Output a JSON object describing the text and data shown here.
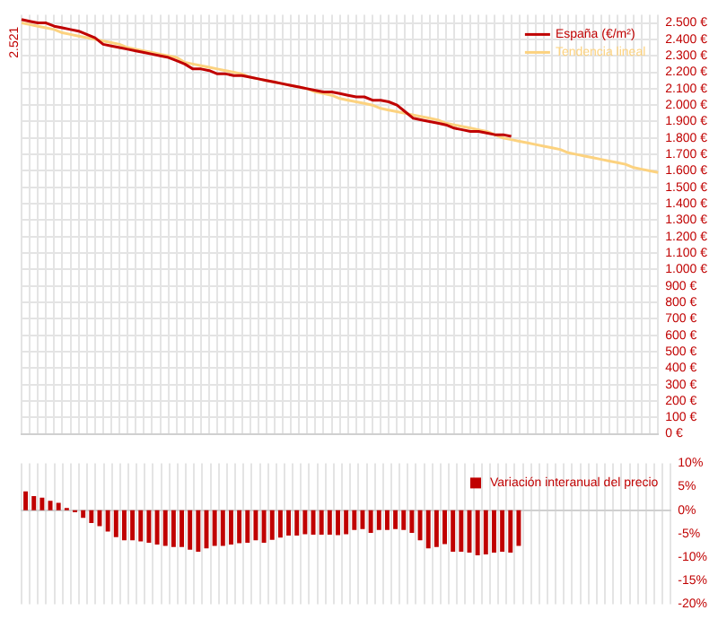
{
  "chart_data": [
    {
      "type": "line",
      "categories": [
        null,
        null,
        null,
        null,
        null,
        null,
        null,
        null,
        null,
        null,
        null,
        null,
        null,
        null,
        null,
        null,
        null,
        null,
        null,
        null,
        null,
        null,
        null,
        null,
        null,
        null,
        null,
        null,
        null,
        null,
        null,
        null,
        null,
        null,
        null,
        null,
        null,
        null,
        null,
        null,
        null,
        null,
        null,
        null,
        null,
        null,
        null,
        null,
        null,
        null,
        null,
        null,
        null,
        null,
        null,
        null,
        null,
        null,
        null,
        null,
        null,
        null,
        null,
        null,
        null,
        null,
        null,
        null,
        null,
        null,
        null,
        null,
        null,
        null,
        null,
        null,
        null,
        null,
        null
      ],
      "series": [
        {
          "name": "España (€/m²)",
          "color": "#c00000",
          "values": [
            2521,
            2510,
            2500,
            2500,
            2480,
            2470,
            2460,
            2450,
            2430,
            2410,
            2370,
            2360,
            2350,
            2340,
            2330,
            2320,
            2310,
            2300,
            2290,
            2270,
            2250,
            2220,
            2220,
            2210,
            2190,
            2190,
            2180,
            2180,
            2170,
            2160,
            2150,
            2140,
            2130,
            2120,
            2110,
            2100,
            2090,
            2080,
            2080,
            2070,
            2060,
            2050,
            2050,
            2030,
            2030,
            2020,
            2000,
            1960,
            1920,
            1910,
            1900,
            1890,
            1880,
            1860,
            1850,
            1840,
            1840,
            1830,
            1820,
            1820,
            1810,
            null,
            null,
            null,
            null,
            null,
            null,
            null,
            null,
            null,
            null,
            null,
            null,
            null,
            null,
            null,
            null,
            null,
            null
          ],
          "value_labels": [
            "2.521",
            null,
            null,
            null,
            null,
            null,
            null,
            null,
            null,
            null,
            null,
            null,
            null,
            null,
            null,
            null,
            null,
            null,
            null,
            null,
            null,
            null,
            null,
            null,
            null,
            null,
            null,
            null,
            null,
            null,
            null,
            null,
            null,
            null,
            null,
            null,
            null,
            null,
            null,
            null,
            null,
            null,
            null,
            null,
            null,
            null,
            null,
            null,
            null,
            null,
            null,
            null,
            null,
            null,
            null,
            null,
            null,
            null,
            null,
            null,
            null,
            null,
            null,
            null,
            null,
            null,
            null,
            null,
            null,
            null,
            null,
            null,
            null,
            null,
            null,
            null,
            null,
            null,
            null
          ]
        },
        {
          "name": "Tendencia lineal",
          "color": "#fcd27f",
          "values": [
            2500,
            2490,
            2480,
            2470,
            2460,
            2440,
            2430,
            2420,
            2410,
            2400,
            2390,
            2380,
            2370,
            2350,
            2340,
            2330,
            2320,
            2310,
            2300,
            2290,
            2260,
            2250,
            2240,
            2230,
            2220,
            2210,
            2200,
            2190,
            2170,
            2160,
            2150,
            2140,
            2130,
            2120,
            2110,
            2100,
            2080,
            2070,
            2060,
            2040,
            2030,
            2020,
            2010,
            2000,
            1980,
            1970,
            1960,
            1950,
            1940,
            1930,
            1920,
            1910,
            1890,
            1880,
            1870,
            1860,
            1850,
            1840,
            1820,
            1800,
            1790,
            1780,
            1770,
            1760,
            1750,
            1740,
            1730,
            1710,
            1700,
            1690,
            1680,
            1670,
            1660,
            1650,
            1640,
            1620,
            1610,
            1600,
            1590
          ]
        }
      ],
      "ylim": [
        0,
        2550
      ],
      "yticks": [
        {
          "value": 0,
          "label": "0 €"
        },
        {
          "value": 100,
          "label": "100 €"
        },
        {
          "value": 200,
          "label": "200 €"
        },
        {
          "value": 300,
          "label": "300 €"
        },
        {
          "value": 400,
          "label": "400 €"
        },
        {
          "value": 500,
          "label": "500 €"
        },
        {
          "value": 600,
          "label": "600 €"
        },
        {
          "value": 700,
          "label": "700 €"
        },
        {
          "value": 800,
          "label": "800 €"
        },
        {
          "value": 900,
          "label": "900 €"
        },
        {
          "value": 1000,
          "label": "1.000 €"
        },
        {
          "value": 1100,
          "label": "1.100 €"
        },
        {
          "value": 1200,
          "label": "1.200 €"
        },
        {
          "value": 1300,
          "label": "1.300 €"
        },
        {
          "value": 1400,
          "label": "1.400 €"
        },
        {
          "value": 1500,
          "label": "1.500 €"
        },
        {
          "value": 1600,
          "label": "1.600 €"
        },
        {
          "value": 1700,
          "label": "1.700 €"
        },
        {
          "value": 1800,
          "label": "1.800 €"
        },
        {
          "value": 1900,
          "label": "1.900 €"
        },
        {
          "value": 2000,
          "label": "2.000 €"
        },
        {
          "value": 2100,
          "label": "2.100 €"
        },
        {
          "value": 2200,
          "label": "2.200 €"
        },
        {
          "value": 2300,
          "label": "2.300 €"
        },
        {
          "value": 2400,
          "label": "2.400 €"
        },
        {
          "value": 2500,
          "label": "2.500 €"
        }
      ],
      "grid": true,
      "legend": "top right",
      "marker": "none"
    },
    {
      "type": "bar",
      "categories": [
        null,
        null,
        null,
        null,
        null,
        null,
        null,
        null,
        null,
        null,
        null,
        null,
        null,
        null,
        null,
        null,
        null,
        null,
        null,
        null,
        null,
        null,
        null,
        null,
        null,
        null,
        null,
        null,
        null,
        null,
        null,
        null,
        null,
        null,
        null,
        null,
        null,
        null,
        null,
        null,
        null,
        null,
        null,
        null,
        null,
        null,
        null,
        null,
        null,
        null,
        null,
        null,
        null,
        null,
        null,
        null,
        null,
        null,
        null,
        null,
        null,
        null,
        null,
        null,
        null,
        null,
        null,
        null,
        null,
        null,
        null,
        null,
        null,
        null,
        null,
        null,
        null,
        null,
        null
      ],
      "series": [
        {
          "name": "Variación interanual del precio",
          "color": "#c00000",
          "values": [
            4.0,
            3.0,
            2.7,
            2.0,
            1.6,
            0.5,
            -0.4,
            -1.6,
            -2.7,
            -3.4,
            -4.5,
            -5.7,
            -6.4,
            -6.4,
            -6.6,
            -6.9,
            -7.3,
            -7.6,
            -7.8,
            -7.8,
            -8.4,
            -8.8,
            -8.1,
            -7.6,
            -7.6,
            -7.3,
            -7.0,
            -6.9,
            -6.4,
            -6.9,
            -6.3,
            -5.8,
            -5.4,
            -5.4,
            -5.1,
            -5.2,
            -5.2,
            -5.2,
            -5.3,
            -5.1,
            -4.2,
            -4.0,
            -4.8,
            -4.2,
            -4.2,
            -4.0,
            -4.2,
            -4.8,
            -6.4,
            -8.1,
            -7.8,
            -7.2,
            -8.8,
            -8.8,
            -9.0,
            -9.6,
            -9.4,
            -9.0,
            -8.8,
            -9.0,
            -7.6,
            null,
            null,
            null,
            null,
            null,
            null,
            null,
            null,
            null,
            null,
            null,
            null,
            null,
            null,
            null,
            null,
            null,
            null
          ]
        }
      ],
      "ylim": [
        -20,
        10
      ],
      "yticks": [
        {
          "value": -20,
          "label": "-20%"
        },
        {
          "value": -15,
          "label": "-15%"
        },
        {
          "value": -10,
          "label": "-10%"
        },
        {
          "value": -5,
          "label": "-5%"
        },
        {
          "value": 0,
          "label": "0%"
        },
        {
          "value": 5,
          "label": "5%"
        },
        {
          "value": 10,
          "label": "10%"
        }
      ],
      "grid": "x",
      "legend": "top right"
    }
  ]
}
